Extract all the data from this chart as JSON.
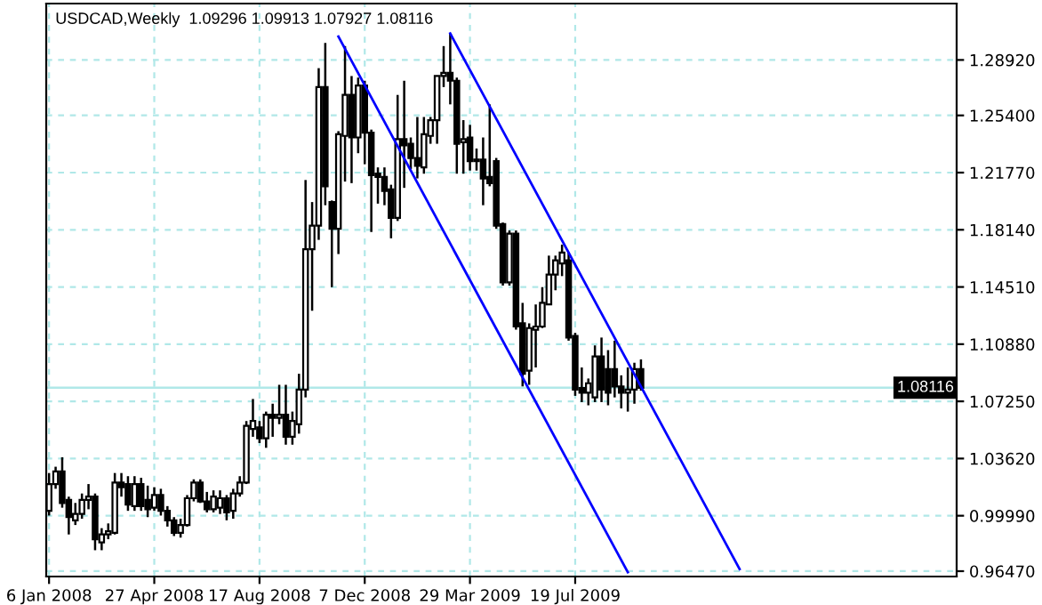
{
  "chart_data": {
    "type": "candlestick",
    "title": "USDCAD,Weekly  1.09296 1.09913 1.07927 1.08116",
    "x": [
      "2008-01-06",
      "2008-01-13",
      "2008-01-20",
      "2008-01-27",
      "2008-02-03",
      "2008-02-10",
      "2008-02-17",
      "2008-02-24",
      "2008-03-02",
      "2008-03-09",
      "2008-03-16",
      "2008-03-23",
      "2008-03-30",
      "2008-04-06",
      "2008-04-13",
      "2008-04-20",
      "2008-04-27",
      "2008-05-04",
      "2008-05-11",
      "2008-05-18",
      "2008-05-25",
      "2008-06-01",
      "2008-06-08",
      "2008-06-15",
      "2008-06-22",
      "2008-06-29",
      "2008-07-06",
      "2008-07-13",
      "2008-07-20",
      "2008-07-27",
      "2008-08-03",
      "2008-08-10",
      "2008-08-17",
      "2008-08-24",
      "2008-08-31",
      "2008-09-07",
      "2008-09-14",
      "2008-09-21",
      "2008-09-28",
      "2008-10-05",
      "2008-10-12",
      "2008-10-19",
      "2008-10-26",
      "2008-11-02",
      "2008-11-09",
      "2008-11-16",
      "2008-11-23",
      "2008-11-30",
      "2008-12-07",
      "2008-12-14",
      "2008-12-21",
      "2008-12-28",
      "2009-01-04",
      "2009-01-11",
      "2009-01-18",
      "2009-01-25",
      "2009-02-01",
      "2009-02-08",
      "2009-02-15",
      "2009-02-22",
      "2009-03-01",
      "2009-03-08",
      "2009-03-15",
      "2009-03-22",
      "2009-03-29",
      "2009-04-05",
      "2009-04-12",
      "2009-04-19",
      "2009-04-26",
      "2009-05-03",
      "2009-05-10",
      "2009-05-17",
      "2009-05-24",
      "2009-05-31",
      "2009-06-07",
      "2009-06-14",
      "2009-06-21",
      "2009-06-28",
      "2009-07-05",
      "2009-07-12",
      "2009-07-19",
      "2009-07-26",
      "2009-08-02",
      "2009-08-09",
      "2009-08-16",
      "2009-08-23",
      "2009-08-30",
      "2009-09-06",
      "2009-09-13",
      "2009-09-20",
      "2009-09-27"
    ],
    "ohlc": [
      [
        1.003,
        1.027,
        1.0,
        1.02
      ],
      [
        1.02,
        1.031,
        1.017,
        1.028
      ],
      [
        1.028,
        1.037,
        1.005,
        1.008
      ],
      [
        1.01,
        1.012,
        0.988,
        0.999
      ],
      [
        0.997,
        1.008,
        0.994,
        1.001
      ],
      [
        1.001,
        1.014,
        0.998,
        1.01
      ],
      [
        1.01,
        1.02,
        1.004,
        1.012
      ],
      [
        1.012,
        1.014,
        0.978,
        0.985
      ],
      [
        0.983,
        0.992,
        0.978,
        0.988
      ],
      [
        0.988,
        0.995,
        0.985,
        0.99
      ],
      [
        0.989,
        1.027,
        0.988,
        1.021
      ],
      [
        1.021,
        1.027,
        1.012,
        1.018
      ],
      [
        1.02,
        1.025,
        1.003,
        1.007
      ],
      [
        1.006,
        1.025,
        1.003,
        1.02
      ],
      [
        1.02,
        1.024,
        1.003,
        1.006
      ],
      [
        1.01,
        1.019,
        0.999,
        1.004
      ],
      [
        1.005,
        1.018,
        1.003,
        1.013
      ],
      [
        1.013,
        1.017,
        1.0,
        1.003
      ],
      [
        1.003,
        1.006,
        0.993,
        0.997
      ],
      [
        0.997,
        0.999,
        0.987,
        0.989
      ],
      [
        0.989,
        0.998,
        0.986,
        0.994
      ],
      [
        0.994,
        1.013,
        0.993,
        1.011
      ],
      [
        1.011,
        1.023,
        1.009,
        1.021
      ],
      [
        1.021,
        1.023,
        1.008,
        1.009
      ],
      [
        1.009,
        1.015,
        1.002,
        1.004
      ],
      [
        1.004,
        1.016,
        1.002,
        1.012
      ],
      [
        1.005,
        1.016,
        1.001,
        1.011
      ],
      [
        1.011,
        1.013,
        0.997,
        1.002
      ],
      [
        1.003,
        1.017,
        0.998,
        1.014
      ],
      [
        1.014,
        1.025,
        1.012,
        1.021
      ],
      [
        1.021,
        1.06,
        1.02,
        1.057
      ],
      [
        1.055,
        1.074,
        1.05,
        1.06
      ],
      [
        1.056,
        1.06,
        1.046,
        1.049
      ],
      [
        1.049,
        1.066,
        1.043,
        1.064
      ],
      [
        1.064,
        1.071,
        1.05,
        1.062
      ],
      [
        1.062,
        1.083,
        1.058,
        1.064
      ],
      [
        1.064,
        1.083,
        1.045,
        1.05
      ],
      [
        1.05,
        1.066,
        1.045,
        1.06
      ],
      [
        1.058,
        1.09,
        1.052,
        1.08
      ],
      [
        1.08,
        1.213,
        1.075,
        1.169
      ],
      [
        1.169,
        1.199,
        1.13,
        1.184
      ],
      [
        1.184,
        1.284,
        1.175,
        1.272
      ],
      [
        1.272,
        1.3,
        1.197,
        1.209
      ],
      [
        1.199,
        1.2,
        1.145,
        1.182
      ],
      [
        1.182,
        1.244,
        1.166,
        1.242
      ],
      [
        1.241,
        1.298,
        1.212,
        1.267
      ],
      [
        1.267,
        1.279,
        1.211,
        1.24
      ],
      [
        1.24,
        1.278,
        1.23,
        1.273
      ],
      [
        1.273,
        1.276,
        1.223,
        1.243
      ],
      [
        1.243,
        1.245,
        1.18,
        1.216
      ],
      [
        1.217,
        1.221,
        1.198,
        1.215
      ],
      [
        1.215,
        1.221,
        1.197,
        1.206
      ],
      [
        1.207,
        1.21,
        1.176,
        1.189
      ],
      [
        1.189,
        1.267,
        1.187,
        1.239
      ],
      [
        1.239,
        1.276,
        1.208,
        1.235
      ],
      [
        1.236,
        1.24,
        1.22,
        1.227
      ],
      [
        1.227,
        1.253,
        1.214,
        1.222
      ],
      [
        1.221,
        1.253,
        1.217,
        1.242
      ],
      [
        1.241,
        1.253,
        1.236,
        1.251
      ],
      [
        1.251,
        1.279,
        1.236,
        1.279
      ],
      [
        1.279,
        1.298,
        1.272,
        1.281
      ],
      [
        1.281,
        1.306,
        1.261,
        1.276
      ],
      [
        1.276,
        1.278,
        1.217,
        1.236
      ],
      [
        1.237,
        1.251,
        1.217,
        1.239
      ],
      [
        1.24,
        1.248,
        1.219,
        1.225
      ],
      [
        1.226,
        1.233,
        1.219,
        1.225
      ],
      [
        1.226,
        1.24,
        1.197,
        1.214
      ],
      [
        1.215,
        1.261,
        1.209,
        1.211
      ],
      [
        1.225,
        1.227,
        1.182,
        1.184
      ],
      [
        1.185,
        1.186,
        1.146,
        1.148
      ],
      [
        1.148,
        1.181,
        1.146,
        1.179
      ],
      [
        1.179,
        1.181,
        1.118,
        1.12
      ],
      [
        1.122,
        1.135,
        1.082,
        1.09
      ],
      [
        1.092,
        1.122,
        1.083,
        1.119
      ],
      [
        1.118,
        1.134,
        1.094,
        1.12
      ],
      [
        1.12,
        1.145,
        1.119,
        1.135
      ],
      [
        1.134,
        1.165,
        1.134,
        1.153
      ],
      [
        1.153,
        1.165,
        1.143,
        1.162
      ],
      [
        1.16,
        1.172,
        1.152,
        1.167
      ],
      [
        1.162,
        1.167,
        1.111,
        1.113
      ],
      [
        1.114,
        1.116,
        1.076,
        1.08
      ],
      [
        1.081,
        1.094,
        1.072,
        1.078
      ],
      [
        1.078,
        1.087,
        1.07,
        1.084
      ],
      [
        1.075,
        1.108,
        1.072,
        1.101
      ],
      [
        1.101,
        1.113,
        1.072,
        1.08
      ],
      [
        1.093,
        1.105,
        1.07,
        1.078
      ],
      [
        1.093,
        1.111,
        1.075,
        1.082
      ],
      [
        1.082,
        1.089,
        1.068,
        1.078
      ],
      [
        1.078,
        1.094,
        1.066,
        1.08
      ],
      [
        1.08,
        1.097,
        1.071,
        1.093
      ],
      [
        1.09296,
        1.09913,
        1.07927,
        1.08116
      ]
    ],
    "color": "#000000",
    "series": [
      {
        "type": "line",
        "color": "#0000ff",
        "x": [
          "2009-03-08",
          "2010-01-10"
        ],
        "values": [
          1.306,
          0.966
        ]
      },
      {
        "type": "line",
        "color": "#0000ff",
        "x": [
          "2008-11-09",
          "2009-09-13"
        ],
        "values": [
          1.304,
          0.964
        ]
      }
    ],
    "xlim": [
      "2008-01-03",
      "2010-08-29"
    ],
    "xticks": [
      {
        "value": "2008-01-06",
        "label": "6 Jan 2008"
      },
      {
        "value": "2008-04-27",
        "label": "27 Apr 2008"
      },
      {
        "value": "2008-08-17",
        "label": "17 Aug 2008"
      },
      {
        "value": "2008-12-07",
        "label": "7 Dec 2008"
      },
      {
        "value": "2009-03-29",
        "label": "29 Mar 2009"
      },
      {
        "value": "2009-07-19",
        "label": "19 Jul 2009"
      }
    ],
    "ylim": [
      0.9613,
      1.325
    ],
    "yticks": [
      {
        "value": 0.9647,
        "label": "0.96470"
      },
      {
        "value": 0.9999,
        "label": "0.99990"
      },
      {
        "value": 1.0362,
        "label": "1.03620"
      },
      {
        "value": 1.0725,
        "label": "1.07250"
      },
      {
        "value": 1.1088,
        "label": "1.10880"
      },
      {
        "value": 1.1451,
        "label": "1.14510"
      },
      {
        "value": 1.1814,
        "label": "1.18140"
      },
      {
        "value": 1.2177,
        "label": "1.21770"
      },
      {
        "value": 1.254,
        "label": "1.25400"
      },
      {
        "value": 1.2892,
        "label": "1.28920"
      }
    ],
    "ref_lines": [
      {
        "axis": "y",
        "value": 1.08116,
        "label": "1.08116",
        "color": "#b0e8e8"
      }
    ],
    "grid": true
  }
}
